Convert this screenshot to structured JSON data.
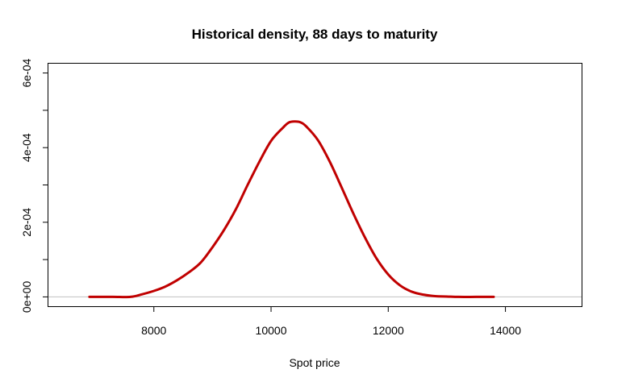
{
  "chart_data": {
    "type": "line",
    "title": "Historical density, 88 days to maturity",
    "xlabel": "Spot price",
    "ylabel": "",
    "xlim": [
      6200,
      15300
    ],
    "ylim": [
      -2.5e-05,
      0.000625
    ],
    "x_ticks": [
      {
        "value": 8000,
        "label": "8000"
      },
      {
        "value": 10000,
        "label": "10000"
      },
      {
        "value": 12000,
        "label": "12000"
      },
      {
        "value": 14000,
        "label": "14000"
      }
    ],
    "y_ticks": [
      {
        "value": 0,
        "label": "0e+00"
      },
      {
        "value": 0.0002,
        "label": "2e-04"
      },
      {
        "value": 0.0004,
        "label": "4e-04"
      },
      {
        "value": 0.0006,
        "label": "6e-04"
      }
    ],
    "y_minor_ticks": [
      0.0001,
      0.0003,
      0.0005
    ],
    "baseline": {
      "y": 0,
      "color": "#c0c0c0"
    },
    "grid": false,
    "colors": {
      "series": "#c00000",
      "axis": "#000000",
      "baseline": "#c0c0c0"
    },
    "series": [
      {
        "x": [
          6900,
          7300,
          7600,
          7800,
          8000,
          8200,
          8400,
          8600,
          8800,
          9000,
          9200,
          9400,
          9600,
          9800,
          10000,
          10200,
          10300,
          10400,
          10500,
          10600,
          10800,
          11000,
          11200,
          11400,
          11600,
          11800,
          12000,
          12200,
          12400,
          12600,
          12800,
          13000,
          13200,
          13500,
          13800
        ],
        "y": [
          0,
          0,
          0,
          7e-06,
          1.6e-05,
          2.8e-05,
          4.5e-05,
          6.6e-05,
          9.2e-05,
          0.000133,
          0.00018,
          0.000235,
          0.0003,
          0.000362,
          0.000418,
          0.000453,
          0.000467,
          0.00047,
          0.000468,
          0.000457,
          0.00042,
          0.000363,
          0.000295,
          0.000225,
          0.00016,
          0.000103,
          6e-05,
          3.1e-05,
          1.4e-05,
          6e-06,
          2e-06,
          1e-06,
          0,
          0,
          0
        ]
      }
    ]
  }
}
